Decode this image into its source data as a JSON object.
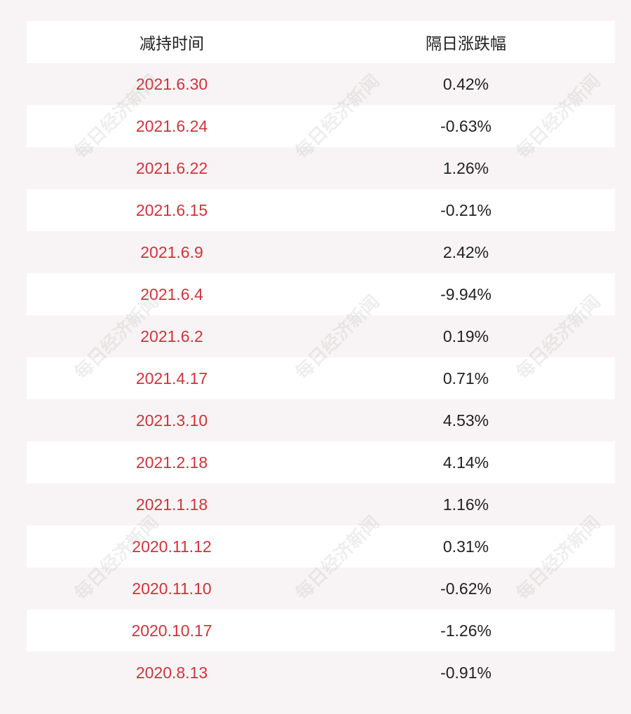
{
  "table": {
    "header": [
      "减持时间",
      "隔日涨跌幅"
    ],
    "rows": [
      [
        "2021.6.30",
        "0.42%"
      ],
      [
        "2021.6.24",
        "-0.63%"
      ],
      [
        "2021.6.22",
        "1.26%"
      ],
      [
        "2021.6.15",
        "-0.21%"
      ],
      [
        "2021.6.9",
        "2.42%"
      ],
      [
        "2021.6.4",
        "-9.94%"
      ],
      [
        "2021.6.2",
        "0.19%"
      ],
      [
        "2021.4.17",
        "0.71%"
      ],
      [
        "2021.3.10",
        "4.53%"
      ],
      [
        "2021.2.18",
        "4.14%"
      ],
      [
        "2021.1.18",
        "1.16%"
      ],
      [
        "2020.11.12",
        "0.31%"
      ],
      [
        "2020.11.10",
        "-0.62%"
      ],
      [
        "2020.10.17",
        "-1.26%"
      ],
      [
        "2020.8.13",
        "-0.91%"
      ]
    ]
  },
  "watermark": "每日经济新闻"
}
